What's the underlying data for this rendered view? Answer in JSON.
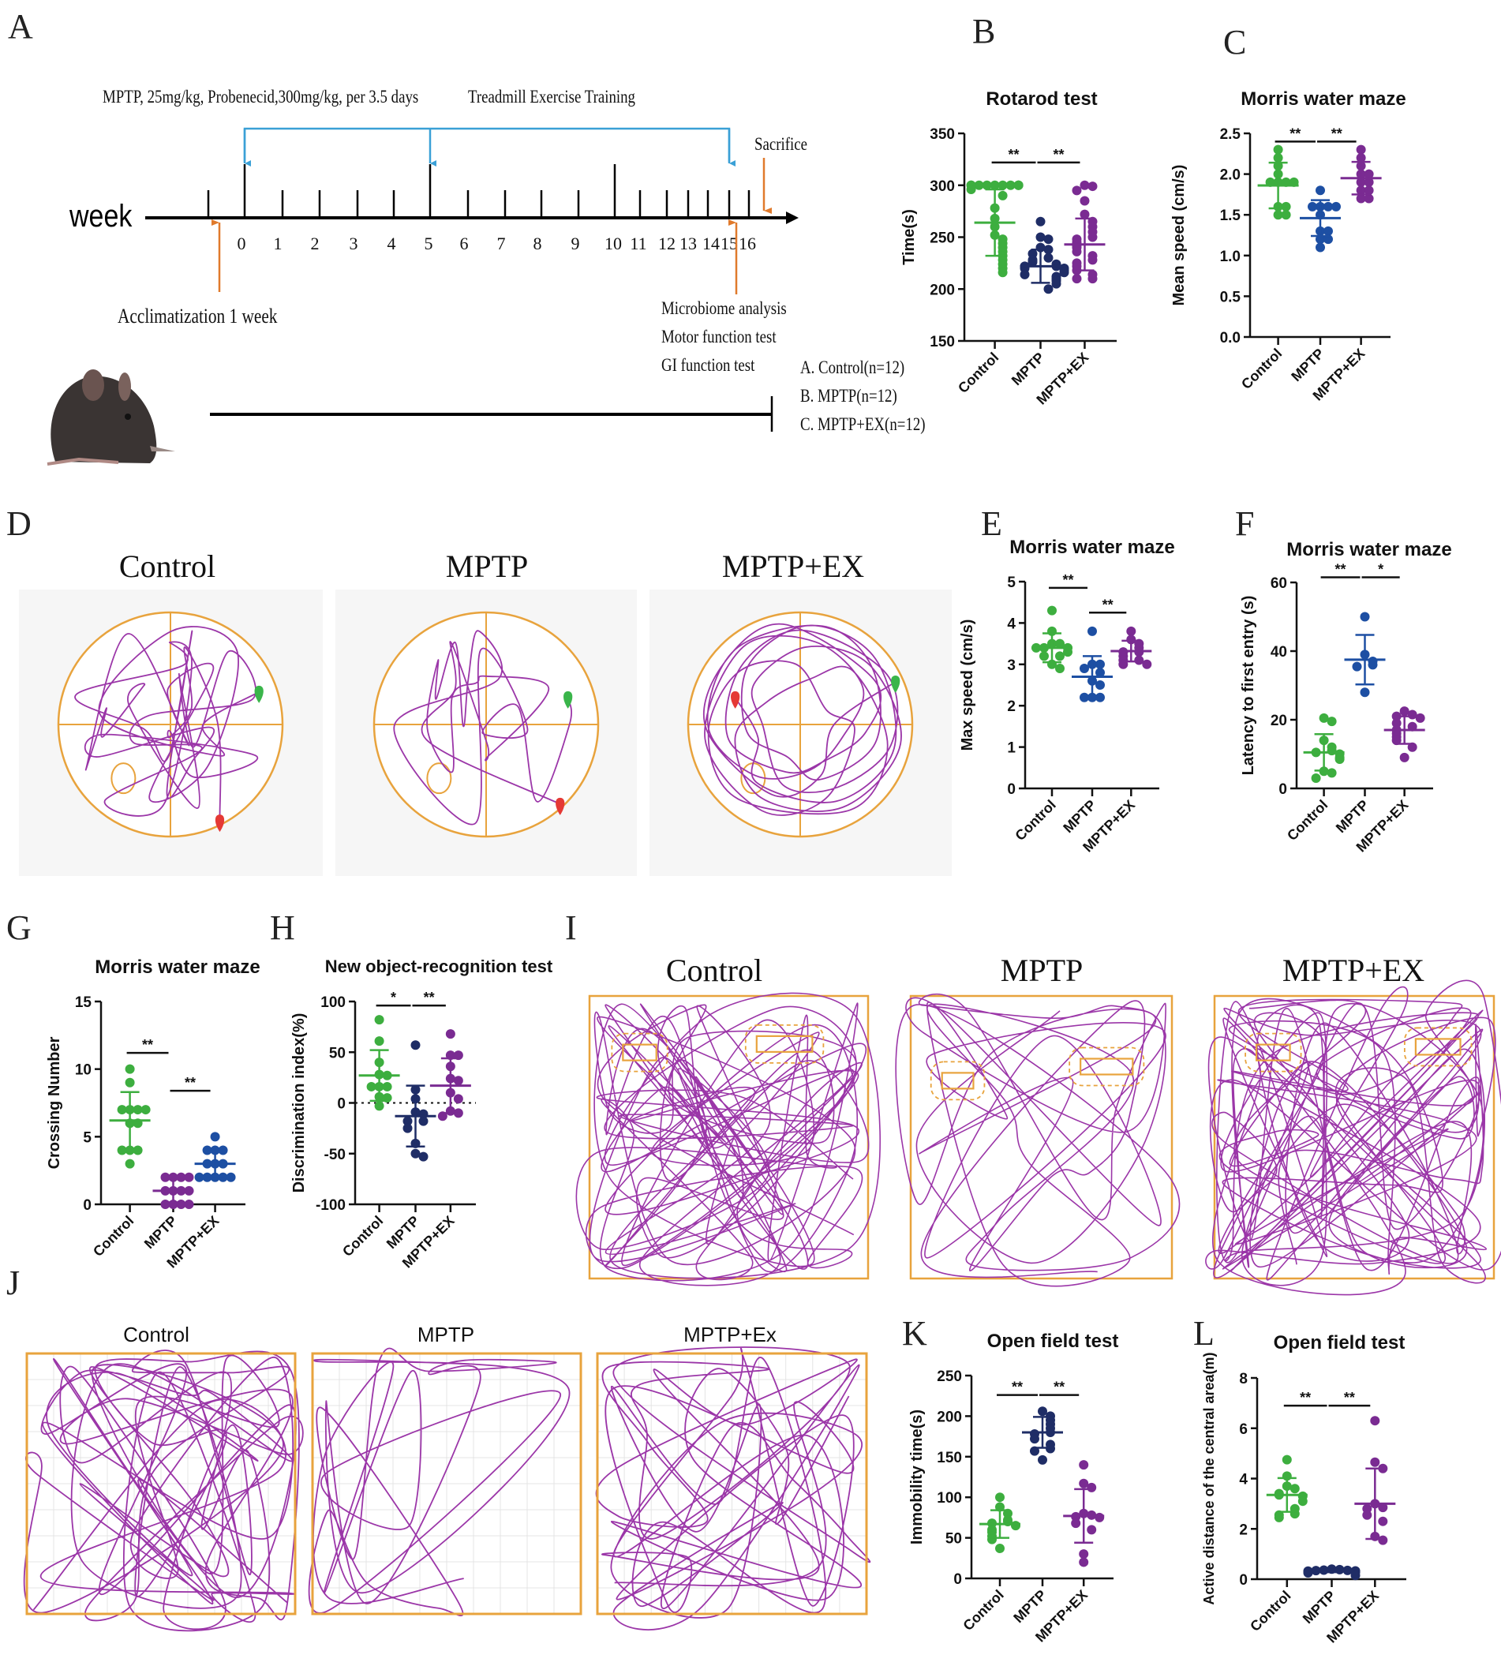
{
  "panel_letters": {
    "A": "A",
    "B": "B",
    "C": "C",
    "D": "D",
    "E": "E",
    "F": "F",
    "G": "G",
    "H": "H",
    "I": "I",
    "J": "J",
    "K": "K",
    "L": "L"
  },
  "colors": {
    "green": "#3dae3f",
    "navy": "#1f2d66",
    "blue": "#1d4fa3",
    "purple": "#7a2b92",
    "orange": "#e8a33d",
    "track": "#9b36a8",
    "arrow_blue": "#3aa0d6",
    "arrow_orange": "#e07a2c"
  },
  "timeline": {
    "axis_label": "week",
    "weeks": [
      "0",
      "1",
      "2",
      "3",
      "4",
      "5",
      "6",
      "7",
      "8",
      "9",
      "10",
      "11",
      "12",
      "13",
      "14",
      "15",
      "16"
    ],
    "dosing_text": "MPTP, 25mg/kg, Probenecid,300mg/kg, per 3.5 days",
    "training_text": "Treadmill Exercise Training",
    "sacrifice": "Sacrifice",
    "acclimatization": "Acclimatization 1 week",
    "tests": [
      "Microbiome analysis",
      "Motor function test",
      "GI function test"
    ],
    "groups": [
      "A. Control(n=12)",
      "B. MPTP(n=12)",
      "C. MPTP+EX(n=12)"
    ]
  },
  "tracks": {
    "D": {
      "titles": [
        "Control",
        "MPTP",
        "MPTP+EX"
      ]
    },
    "I": {
      "titles": [
        "Control",
        "MPTP",
        "MPTP+EX"
      ]
    },
    "J": {
      "titles": [
        "Control",
        "MPTP",
        "MPTP+Ex"
      ]
    }
  },
  "chart_data": [
    {
      "id": "B",
      "type": "scatter",
      "title": "Rotarod test",
      "ylabel": "Time(s)",
      "xlabel": "",
      "ylim": [
        150,
        350
      ],
      "yticks": [
        150,
        200,
        250,
        300,
        350
      ],
      "tick_labels": [
        "150",
        "200",
        "250",
        "300",
        "350"
      ],
      "categories": [
        "Control",
        "MPTP",
        "MPTP+EX"
      ],
      "series": [
        {
          "name": "Control",
          "color": "#3dae3f",
          "mean": 264,
          "sd": 32,
          "values": [
            300,
            300,
            300,
            300,
            300,
            300,
            300,
            300,
            300,
            300,
            296,
            290,
            278,
            268,
            260,
            252,
            248,
            244,
            240,
            236,
            232,
            228,
            224,
            220,
            216
          ]
        },
        {
          "name": "MPTP",
          "color": "#1f2d66",
          "mean": 222,
          "sd": 16,
          "values": [
            265,
            250,
            248,
            240,
            238,
            234,
            230,
            228,
            226,
            224,
            222,
            222,
            220,
            220,
            218,
            216,
            214,
            212,
            210,
            208,
            205,
            200
          ]
        },
        {
          "name": "MPTP+EX",
          "color": "#7a2b92",
          "mean": 243,
          "sd": 25,
          "values": [
            300,
            299,
            295,
            285,
            272,
            265,
            260,
            255,
            250,
            248,
            245,
            242,
            240,
            236,
            232,
            228,
            225,
            222,
            218,
            214,
            210,
            210
          ]
        }
      ],
      "significance": [
        {
          "from": 0,
          "to": 1,
          "y": 322,
          "label": "**"
        },
        {
          "from": 1,
          "to": 2,
          "y": 322,
          "label": "**"
        }
      ]
    },
    {
      "id": "C",
      "type": "scatter",
      "title": "Morris water maze",
      "ylabel": "Mean speed (cm/s)",
      "xlabel": "",
      "ylim": [
        0,
        2.5
      ],
      "yticks": [
        0,
        0.5,
        1,
        1.5,
        2,
        2.5
      ],
      "tick_labels": [
        "0.0",
        "0.5",
        "1.0",
        "1.5",
        "2.0",
        "2.5"
      ],
      "categories": [
        "Control",
        "MPTP",
        "MPTP+EX"
      ],
      "series": [
        {
          "name": "Control",
          "color": "#3dae3f",
          "mean": 1.86,
          "sd": 0.28,
          "values": [
            2.3,
            2.2,
            2.1,
            2.0,
            1.9,
            1.9,
            1.9,
            1.9,
            1.6,
            1.6,
            1.5,
            1.5
          ]
        },
        {
          "name": "MPTP",
          "color": "#1d4fa3",
          "mean": 1.46,
          "sd": 0.22,
          "values": [
            1.8,
            1.6,
            1.6,
            1.6,
            1.6,
            1.5,
            1.3,
            1.3,
            1.2,
            1.2,
            1.1
          ]
        },
        {
          "name": "MPTP+EX",
          "color": "#7a2b92",
          "mean": 1.95,
          "sd": 0.2,
          "values": [
            2.3,
            2.2,
            2.1,
            2.0,
            2.0,
            1.9,
            1.9,
            1.8,
            1.8,
            1.7,
            1.7
          ]
        }
      ],
      "significance": [
        {
          "from": 0,
          "to": 1,
          "y": 2.4,
          "label": "**"
        },
        {
          "from": 1,
          "to": 2,
          "y": 2.4,
          "label": "**"
        }
      ]
    },
    {
      "id": "E",
      "type": "scatter",
      "title": "Morris water maze",
      "ylabel": "Max speed (cm/s)",
      "xlabel": "",
      "ylim": [
        0,
        5
      ],
      "yticks": [
        0,
        1,
        2,
        3,
        4,
        5
      ],
      "tick_labels": [
        "0",
        "1",
        "2",
        "3",
        "4",
        "5"
      ],
      "categories": [
        "Control",
        "MPTP",
        "MPTP+EX"
      ],
      "series": [
        {
          "name": "Control",
          "color": "#3dae3f",
          "mean": 3.4,
          "sd": 0.35,
          "values": [
            4.3,
            3.8,
            3.5,
            3.5,
            3.4,
            3.4,
            3.4,
            3.3,
            3.2,
            3.2,
            3.0,
            2.9
          ]
        },
        {
          "name": "MPTP",
          "color": "#1d4fa3",
          "mean": 2.7,
          "sd": 0.5,
          "values": [
            3.8,
            3.0,
            3.0,
            2.9,
            2.8,
            2.6,
            2.5,
            2.2,
            2.2,
            2.2
          ]
        },
        {
          "name": "MPTP+EX",
          "color": "#7a2b92",
          "mean": 3.32,
          "sd": 0.25,
          "values": [
            3.8,
            3.6,
            3.5,
            3.4,
            3.3,
            3.3,
            3.2,
            3.1,
            3.1,
            3.0,
            3.0
          ]
        }
      ],
      "significance": [
        {
          "from": 0,
          "to": 1,
          "y": 4.85,
          "label": "**"
        },
        {
          "from": 1,
          "to": 2,
          "y": 4.25,
          "label": "**"
        }
      ]
    },
    {
      "id": "F",
      "type": "scatter",
      "title": "Morris water maze",
      "ylabel": "Latency to first entry (s)",
      "xlabel": "",
      "ylim": [
        0,
        60
      ],
      "yticks": [
        0,
        20,
        40,
        60
      ],
      "tick_labels": [
        "0",
        "20",
        "40",
        "60"
      ],
      "categories": [
        "Control",
        "MPTP",
        "MPTP+EX"
      ],
      "series": [
        {
          "name": "Control",
          "color": "#3dae3f",
          "mean": 10.5,
          "sd": 5.3,
          "values": [
            20.5,
            19.5,
            14,
            12,
            11,
            10.5,
            10,
            9,
            8.5,
            5,
            4.5,
            3
          ]
        },
        {
          "name": "MPTP",
          "color": "#1d4fa3",
          "mean": 37.5,
          "sd": 7.2,
          "values": [
            50,
            39,
            37,
            36,
            35.5,
            28
          ]
        },
        {
          "name": "MPTP+EX",
          "color": "#7a2b92",
          "mean": 17,
          "sd": 4,
          "values": [
            22.5,
            21.5,
            21,
            20.5,
            19,
            18,
            17,
            16,
            15,
            14,
            12,
            9
          ]
        }
      ],
      "significance": [
        {
          "from": 0,
          "to": 1,
          "y": 61.5,
          "label": "**"
        },
        {
          "from": 1,
          "to": 2,
          "y": 61.5,
          "label": "*"
        }
      ]
    },
    {
      "id": "G",
      "type": "scatter",
      "title": "Morris water maze",
      "ylabel": "Crossing Number",
      "xlabel": "",
      "ylim": [
        0,
        15
      ],
      "yticks": [
        0,
        5,
        10,
        15
      ],
      "tick_labels": [
        "0",
        "5",
        "10",
        "15"
      ],
      "categories": [
        "Control",
        "MPTP",
        "MPTP+EX"
      ],
      "series": [
        {
          "name": "Control",
          "color": "#3dae3f",
          "mean": 6.2,
          "sd": 2.1,
          "values": [
            10,
            9,
            7,
            7,
            7,
            7,
            6,
            6,
            4,
            4,
            4,
            3
          ]
        },
        {
          "name": "MPTP",
          "color": "#7a2b92",
          "mean": 1,
          "sd": 0.85,
          "values": [
            2,
            2,
            2,
            2,
            1,
            1,
            1,
            1,
            0,
            0,
            0,
            0
          ]
        },
        {
          "name": "MPTP+EX",
          "color": "#1d4fa3",
          "mean": 3,
          "sd": 0.9,
          "values": [
            5,
            4,
            4,
            4,
            3,
            3,
            3,
            2,
            2,
            2,
            2,
            2
          ]
        }
      ],
      "significance": [
        {
          "from": 0,
          "to": 1,
          "y": 11.2,
          "label": "**"
        },
        {
          "from": 1,
          "to": 2,
          "y": 8.4,
          "label": "**"
        }
      ]
    },
    {
      "id": "H",
      "type": "scatter",
      "title": "New object-recognition test",
      "ylabel": "Discrimination index(%)",
      "xlabel": "",
      "ylim": [
        -100,
        100
      ],
      "yticks": [
        -100,
        -50,
        0,
        50,
        100
      ],
      "tick_labels": [
        "-100",
        "-50",
        "0",
        "50",
        "100"
      ],
      "reference_line": 0,
      "categories": [
        "Control",
        "MPTP",
        "MPTP+EX"
      ],
      "series": [
        {
          "name": "Control",
          "color": "#3dae3f",
          "mean": 27,
          "sd": 25,
          "values": [
            82,
            61,
            40,
            28,
            27,
            16,
            16,
            16,
            6,
            5,
            -3
          ]
        },
        {
          "name": "MPTP",
          "color": "#1f2d66",
          "mean": -13,
          "sd": 30,
          "values": [
            57,
            13,
            4,
            -9,
            -11,
            -18,
            -18,
            -25,
            -40,
            -50,
            -53
          ]
        },
        {
          "name": "MPTP+EX",
          "color": "#7a2b92",
          "mean": 17,
          "sd": 27,
          "values": [
            68,
            47,
            47,
            36,
            24,
            22,
            10,
            4,
            -8,
            -10,
            -13
          ]
        }
      ],
      "significance": [
        {
          "from": 0,
          "to": 1,
          "y": 96,
          "label": "*"
        },
        {
          "from": 1,
          "to": 2,
          "y": 96,
          "label": "**"
        }
      ]
    },
    {
      "id": "K",
      "type": "scatter",
      "title": "Open field test",
      "ylabel": "Immobility time(s)",
      "xlabel": "",
      "ylim": [
        0,
        250
      ],
      "yticks": [
        0,
        50,
        100,
        150,
        200,
        250
      ],
      "tick_labels": [
        "0",
        "50",
        "100",
        "150",
        "200",
        "250"
      ],
      "categories": [
        "Control",
        "MPTP",
        "MPTP+EX"
      ],
      "series": [
        {
          "name": "Control",
          "color": "#3dae3f",
          "mean": 67,
          "sd": 17,
          "values": [
            100,
            88,
            80,
            72,
            70,
            68,
            65,
            60,
            57,
            52,
            48,
            37
          ]
        },
        {
          "name": "MPTP",
          "color": "#1f2d66",
          "mean": 180,
          "sd": 19,
          "values": [
            206,
            200,
            195,
            190,
            185,
            180,
            178,
            172,
            165,
            160,
            157,
            146
          ]
        },
        {
          "name": "MPTP+EX",
          "color": "#7a2b92",
          "mean": 77,
          "sd": 33,
          "values": [
            140,
            117,
            112,
            80,
            78,
            76,
            75,
            68,
            60,
            30,
            20
          ]
        }
      ],
      "significance": [
        {
          "from": 0,
          "to": 1,
          "y": 226,
          "label": "**"
        },
        {
          "from": 1,
          "to": 2,
          "y": 226,
          "label": "**"
        }
      ]
    },
    {
      "id": "L",
      "type": "scatter",
      "title": "Open field test",
      "ylabel": "Active distance of the central area(m)",
      "xlabel": "",
      "ylim": [
        0,
        8
      ],
      "yticks": [
        0,
        2,
        4,
        6,
        8
      ],
      "tick_labels": [
        "0",
        "2",
        "4",
        "6",
        "8"
      ],
      "categories": [
        "Control",
        "MPTP",
        "MPTP+EX"
      ],
      "series": [
        {
          "name": "Control",
          "color": "#3dae3f",
          "mean": 3.35,
          "sd": 0.67,
          "values": [
            4.75,
            4.1,
            3.7,
            3.6,
            3.4,
            3.35,
            3.3,
            3.1,
            2.8,
            2.6,
            2.55,
            2.45
          ]
        },
        {
          "name": "MPTP",
          "color": "#1f2d66",
          "mean": 0.33,
          "sd": 0.05,
          "values": [
            0.4,
            0.38,
            0.36,
            0.35,
            0.34,
            0.33,
            0.32,
            0.31,
            0.3,
            0.28,
            0.25,
            0.15
          ]
        },
        {
          "name": "MPTP+EX",
          "color": "#7a2b92",
          "mean": 3.0,
          "sd": 1.4,
          "values": [
            6.3,
            4.65,
            4.4,
            3.0,
            2.85,
            2.8,
            2.55,
            2.3,
            1.7,
            1.55
          ]
        }
      ],
      "significance": [
        {
          "from": 0,
          "to": 1,
          "y": 6.9,
          "label": "**"
        },
        {
          "from": 1,
          "to": 2,
          "y": 6.9,
          "label": "**"
        }
      ]
    }
  ]
}
